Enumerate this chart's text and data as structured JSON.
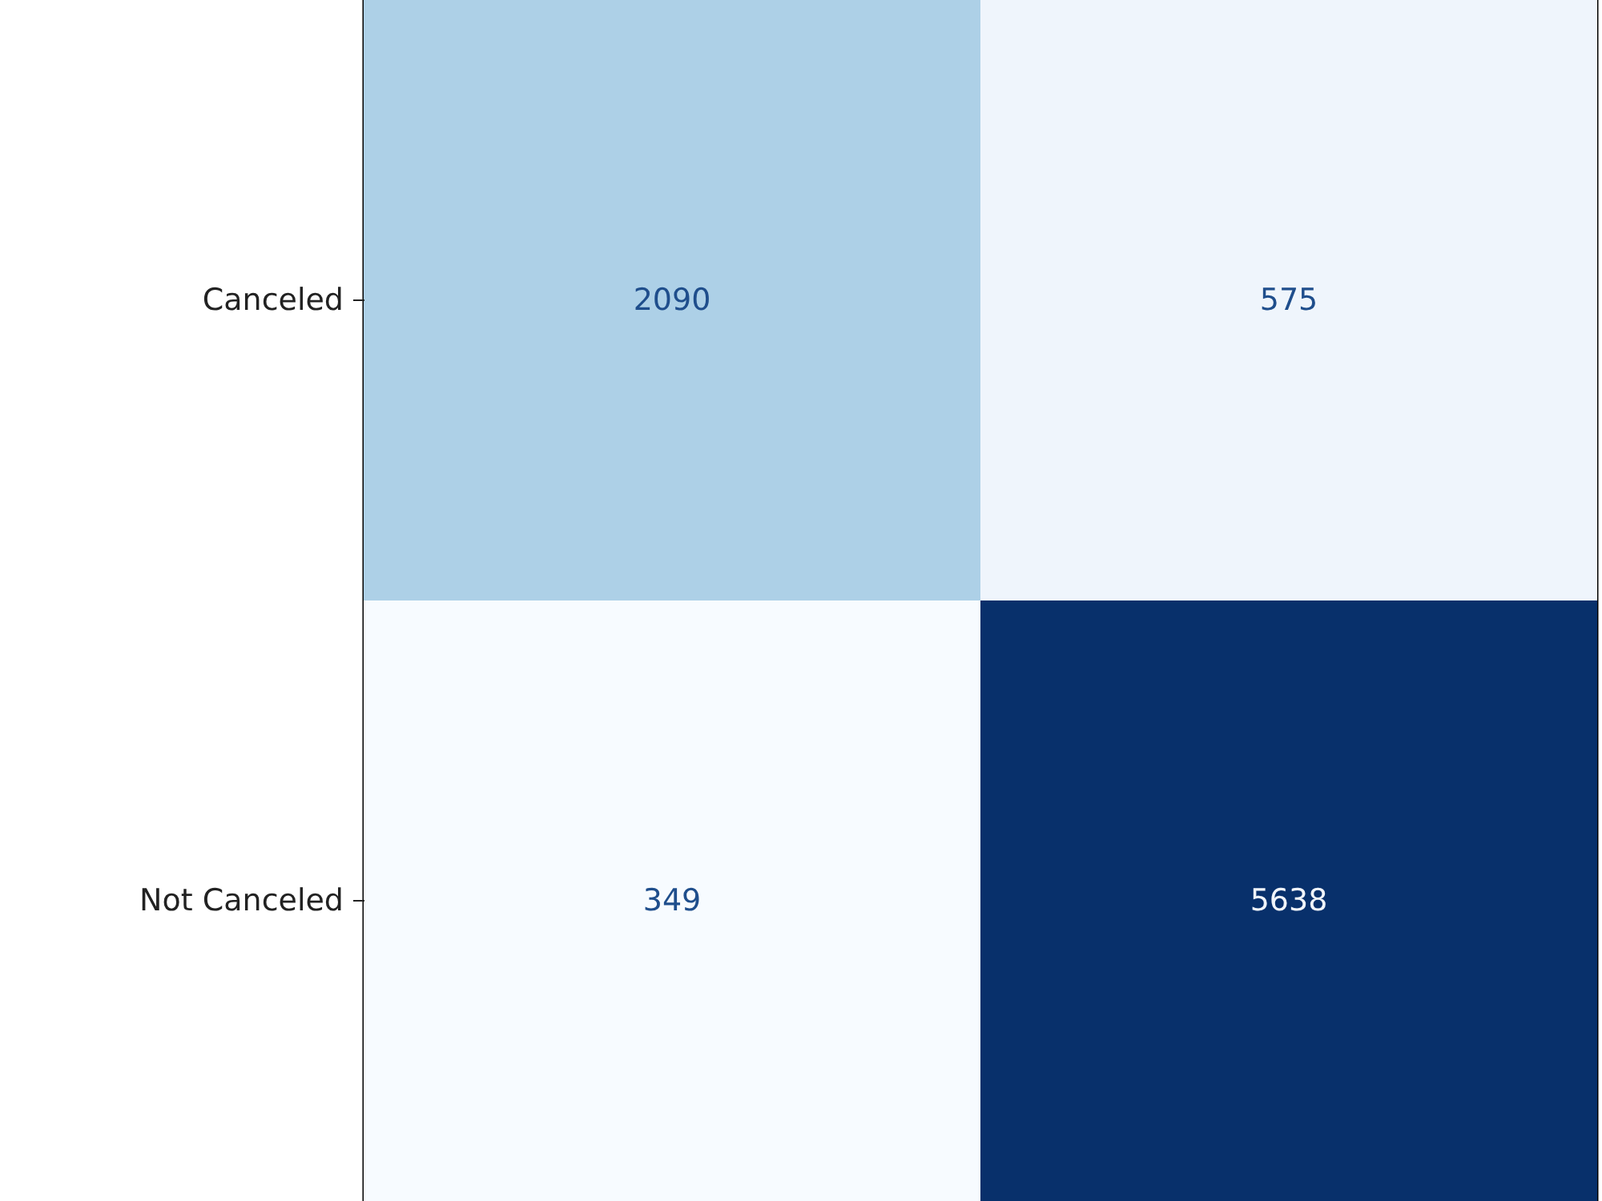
{
  "chart_data": {
    "type": "heatmap",
    "categories": [
      null,
      null
    ],
    "y_categories": [
      "Canceled",
      "Not Canceled"
    ],
    "cells": [
      [
        2090,
        575
      ],
      [
        349,
        5638
      ]
    ],
    "tick_labels": "y",
    "data_labels": true
  }
}
